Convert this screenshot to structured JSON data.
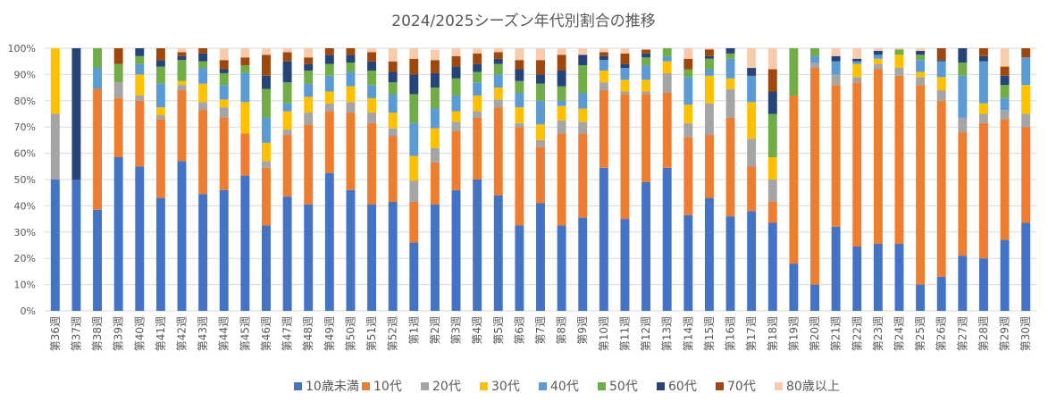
{
  "chart_data": {
    "type": "bar",
    "stacked": true,
    "normalized": true,
    "title": "2024/2025シーズン年代別割合の推移",
    "xlabel": "",
    "ylabel": "",
    "ylim": [
      0,
      100
    ],
    "yticks": [
      "0%",
      "10%",
      "20%",
      "30%",
      "40%",
      "50%",
      "60%",
      "70%",
      "80%",
      "90%",
      "100%"
    ],
    "grid": true,
    "legend_position": "bottom",
    "categories": [
      "第36週",
      "第37週",
      "第38週",
      "第39週",
      "第40週",
      "第41週",
      "第42週",
      "第43週",
      "第44週",
      "第45週",
      "第46週",
      "第47週",
      "第48週",
      "第49週",
      "第50週",
      "第51週",
      "第52週",
      "第1週",
      "第2週",
      "第3週",
      "第4週",
      "第5週",
      "第6週",
      "第7週",
      "第8週",
      "第9週",
      "第10週",
      "第11週",
      "第12週",
      "第13週",
      "第14週",
      "第15週",
      "第16週",
      "第17週",
      "第18週",
      "第19週",
      "第20週",
      "第21週",
      "第22週",
      "第23週",
      "第24週",
      "第25週",
      "第26週",
      "第27週",
      "第28週",
      "第29週",
      "第30週"
    ],
    "series": [
      {
        "name": "10歳未満",
        "color": "#4472c4",
        "values": [
          50,
          50,
          38.5,
          58.5,
          55,
          43,
          57,
          44.5,
          46,
          51.5,
          32.5,
          43.5,
          40.5,
          52.5,
          46,
          40.5,
          41.5,
          26,
          40.5,
          46,
          50,
          44,
          32.5,
          41,
          32.5,
          35.5,
          54.5,
          35,
          49,
          54.5,
          36.5,
          43,
          36,
          38,
          33.5,
          18,
          10,
          32,
          24.5,
          25.5,
          25.5,
          10,
          13,
          21,
          20,
          27,
          33.5
        ]
      },
      {
        "name": "10代",
        "color": "#ed7d31",
        "values": [
          0,
          0,
          46,
          22.5,
          25,
          30,
          27,
          32,
          27.5,
          16,
          22,
          23.5,
          30.5,
          23.5,
          29.5,
          31,
          25,
          15.5,
          16,
          22.5,
          23.5,
          33.5,
          37.5,
          21.5,
          35,
          32,
          29.5,
          47.5,
          33.5,
          28.5,
          29.5,
          24,
          37.5,
          17,
          8,
          64,
          82.5,
          54,
          62.5,
          66.5,
          64,
          76,
          67,
          47,
          51.5,
          46,
          36.5
        ]
      },
      {
        "name": "20代",
        "color": "#a5a5a5",
        "values": [
          25,
          0,
          0,
          6,
          2,
          1.5,
          2,
          3,
          4,
          0,
          2.5,
          2,
          4.5,
          3,
          4,
          4,
          3,
          8,
          5.5,
          3.5,
          2.5,
          3,
          1.5,
          2.5,
          5,
          4.5,
          3,
          1,
          1,
          7.5,
          5.5,
          12,
          11,
          10.5,
          8.5,
          0,
          2,
          4,
          2,
          2,
          3,
          3,
          4,
          5.5,
          3.5,
          3.5,
          5
        ]
      },
      {
        "name": "30代",
        "color": "#ffc000",
        "values": [
          25,
          0,
          0,
          0,
          8,
          3,
          1.5,
          7,
          3,
          12,
          7,
          7,
          6,
          4.5,
          6,
          5.5,
          6,
          9.5,
          7.5,
          4,
          6,
          4.5,
          6,
          6,
          5.5,
          5,
          4.5,
          4.5,
          4.5,
          4.5,
          7,
          10.5,
          4,
          14,
          8.5,
          0,
          0,
          0,
          5,
          2,
          5,
          2,
          5,
          0,
          4,
          0,
          11
        ]
      },
      {
        "name": "40代",
        "color": "#5b9bd5",
        "values": [
          0,
          0,
          8,
          0,
          4,
          9,
          0,
          6,
          5.5,
          11,
          9.5,
          3,
          5,
          6,
          5.5,
          5,
          7,
          12.5,
          7.5,
          6,
          5,
          5,
          5.5,
          9,
          2,
          6,
          4,
          4.5,
          5.5,
          2,
          10.5,
          2.5,
          7.5,
          10,
          0,
          0,
          2.5,
          5,
          1,
          1.5,
          0,
          4.5,
          6,
          16,
          16,
          4.5,
          10.5
        ]
      },
      {
        "name": "50代",
        "color": "#70ad47",
        "values": [
          0,
          0,
          7.5,
          7,
          3,
          6.5,
          8,
          2.5,
          4.5,
          3,
          11,
          8,
          5,
          4.5,
          3.5,
          5.5,
          4.5,
          11,
          8,
          6.5,
          4,
          4,
          4.5,
          6.5,
          5.5,
          10.5,
          0,
          0,
          3,
          3,
          3,
          4,
          2,
          0,
          16.5,
          18,
          3,
          0,
          0,
          0,
          2,
          2,
          0,
          5,
          0,
          5,
          0
        ]
      },
      {
        "name": "60代",
        "color": "#264478",
        "values": [
          0,
          50,
          0,
          0,
          3.5,
          2.5,
          1.5,
          3,
          1.5,
          0,
          5,
          8,
          2.5,
          3.5,
          3,
          3.5,
          4,
          7.5,
          5.5,
          4.5,
          3,
          2,
          4.5,
          3.5,
          6,
          4,
          1.5,
          1.5,
          1.5,
          0,
          0,
          1,
          2.5,
          3,
          8.5,
          0,
          0,
          2,
          1,
          1.5,
          0,
          1.5,
          0.5,
          5.5,
          2,
          3.5,
          0
        ]
      },
      {
        "name": "70代",
        "color": "#9e480e",
        "values": [
          0,
          0,
          0,
          6,
          2.5,
          4.5,
          1.5,
          2,
          3.5,
          3,
          8,
          3.5,
          2.5,
          2.5,
          2.5,
          3.5,
          4,
          6,
          5,
          4,
          4,
          2.5,
          3.5,
          5.5,
          6,
          0,
          1.5,
          4,
          1.5,
          0,
          4,
          2.5,
          2.5,
          0,
          8.5,
          0,
          0,
          0,
          0,
          0,
          0,
          0,
          4.5,
          0,
          4,
          3.5,
          3.5
        ]
      },
      {
        "name": "80歳以上",
        "color": "#f8cbad",
        "values": [
          0,
          0,
          0,
          0,
          0,
          0,
          1.5,
          0,
          4.5,
          3.5,
          2.5,
          1.5,
          3.5,
          0,
          0,
          1.5,
          5,
          4,
          4,
          3,
          2,
          1.5,
          4.5,
          4.5,
          2.5,
          2.5,
          1.5,
          2,
          0,
          0,
          4,
          0.5,
          1,
          7.5,
          8,
          0,
          0,
          3,
          4,
          1,
          0.5,
          1,
          0,
          0,
          0,
          7,
          0
        ]
      }
    ]
  }
}
